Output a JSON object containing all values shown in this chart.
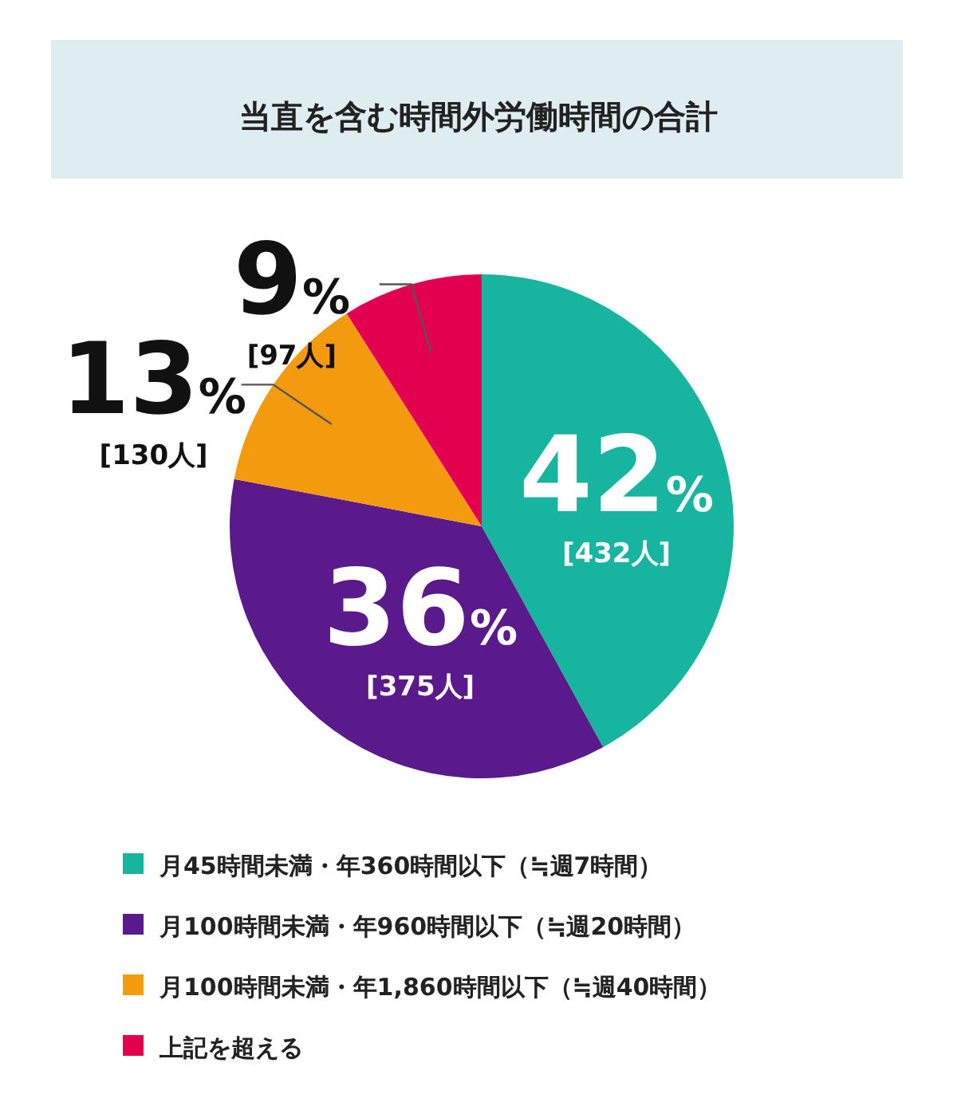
{
  "chart_data": {
    "type": "pie",
    "title": "当直を含む時間外労働時間の合計",
    "categories": [
      "月45時間未満・年360時間以下（≒週7時間）",
      "月100時間未満・年960時間以下（≒週20時間）",
      "月100時間未満・年1,860時間以下（≒週40時間）",
      "上記を超える"
    ],
    "values": [
      42,
      36,
      13,
      9
    ],
    "colors": [
      "#17b4a0",
      "#5a1a8c",
      "#f39a0e",
      "#e2004f"
    ],
    "value_labels": [
      "42%",
      "36%",
      "13%",
      "9%"
    ],
    "annotations": [
      {
        "text": "[432人]",
        "x": "月45時間未満・年360時間以下（≒週7時間）"
      },
      {
        "text": "[375人]",
        "x": "月100時間未満・年960時間以下（≒週20時間）"
      },
      {
        "text": "[130人]",
        "x": "月100時間未満・年1,860時間以下（≒週40時間）"
      },
      {
        "text": "[97人]",
        "x": "上記を超える"
      }
    ],
    "legend": "bottom"
  }
}
